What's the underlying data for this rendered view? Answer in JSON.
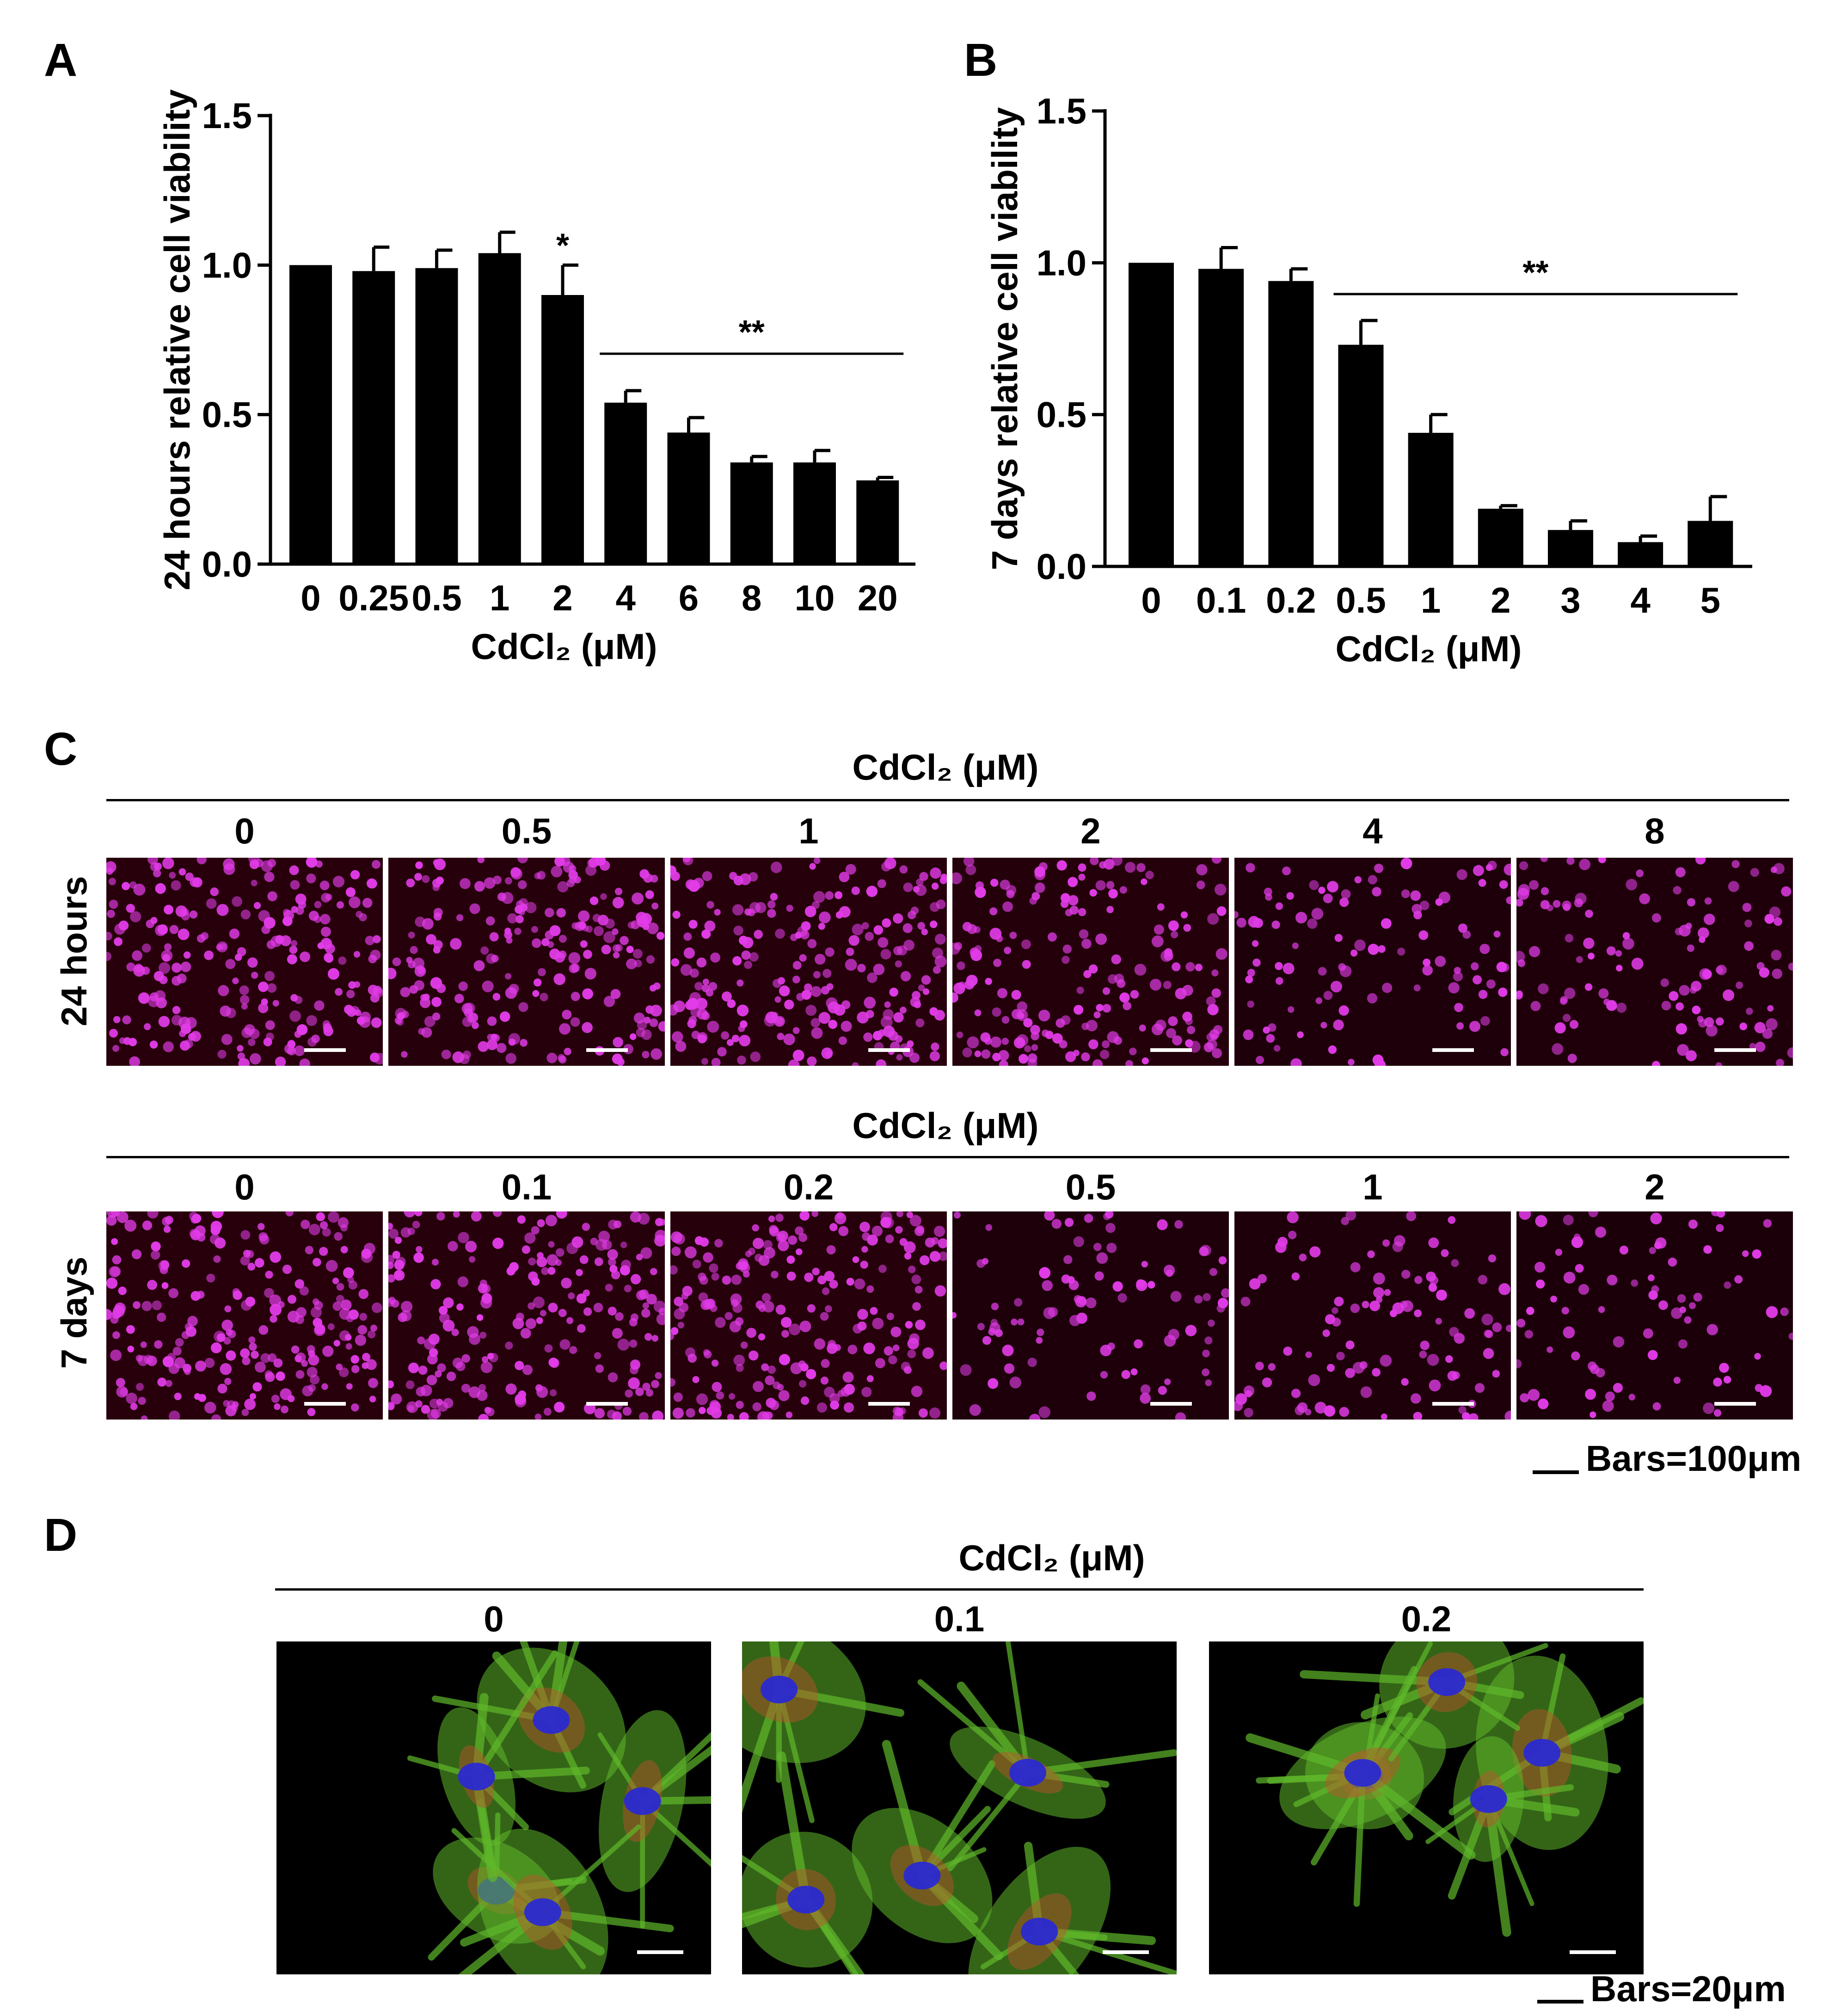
{
  "panels": {
    "a": {
      "letter": "A"
    },
    "b": {
      "letter": "B"
    },
    "c": {
      "letter": "C",
      "header_24h": "CdCl₂ (μM)",
      "header_7d": "CdCl₂ (μM)",
      "row_24h": "24 hours",
      "row_7d": "7 days",
      "cols_24h": [
        "0",
        "0.5",
        "1",
        "2",
        "4",
        "8"
      ],
      "cols_7d": [
        "0",
        "0.1",
        "0.2",
        "0.5",
        "1",
        "2"
      ],
      "density_24h": [
        1.0,
        0.95,
        0.98,
        0.8,
        0.45,
        0.5
      ],
      "density_7d": [
        1.0,
        0.95,
        0.95,
        0.4,
        0.45,
        0.35
      ],
      "scale_legend": "Bars=100μm",
      "colors": {
        "nucleus": "#e23be8",
        "background_glow": "#3a0010"
      }
    },
    "d": {
      "letter": "D",
      "header": "CdCl₂ (μM)",
      "cols": [
        "0",
        "0.1",
        "0.2"
      ],
      "scale_legend": "Bars=20μm",
      "colors": {
        "cytoskeleton": "#5fb82a",
        "actin": "#c0502a",
        "nucleus": "#2a2ad0"
      }
    }
  },
  "chart_data": [
    {
      "type": "bar",
      "panel": "A",
      "categories": [
        "0",
        "0.25",
        "0.5",
        "1",
        "2",
        "4",
        "6",
        "8",
        "10",
        "20"
      ],
      "values": [
        1.0,
        0.98,
        0.99,
        1.04,
        0.9,
        0.54,
        0.44,
        0.34,
        0.34,
        0.28
      ],
      "errors": [
        0.0,
        0.08,
        0.06,
        0.07,
        0.1,
        0.04,
        0.05,
        0.02,
        0.04,
        0.01
      ],
      "annotations": [
        {
          "text": "*",
          "category": "2"
        },
        {
          "text": "**",
          "from": "4",
          "to": "20"
        }
      ],
      "xlabel": "CdCl₂ (μM)",
      "ylabel": "24 hours relative cell viability",
      "ylim": [
        0,
        1.5
      ],
      "yticks": [
        "0.0",
        "0.5",
        "1.0",
        "1.5"
      ],
      "color": "#000000"
    },
    {
      "type": "bar",
      "panel": "B",
      "categories": [
        "0",
        "0.1",
        "0.2",
        "0.5",
        "1",
        "2",
        "3",
        "4",
        "5"
      ],
      "values": [
        1.0,
        0.98,
        0.94,
        0.73,
        0.44,
        0.19,
        0.12,
        0.08,
        0.15
      ],
      "errors": [
        0.0,
        0.07,
        0.04,
        0.08,
        0.06,
        0.01,
        0.03,
        0.02,
        0.08
      ],
      "annotations": [
        {
          "text": "**",
          "from": "0.5",
          "to": "5"
        }
      ],
      "xlabel": "CdCl₂ (μM)",
      "ylabel": "7 days relative cell viability",
      "ylim": [
        0,
        1.5
      ],
      "yticks": [
        "0.0",
        "0.5",
        "1.0",
        "1.5"
      ],
      "color": "#000000"
    }
  ]
}
